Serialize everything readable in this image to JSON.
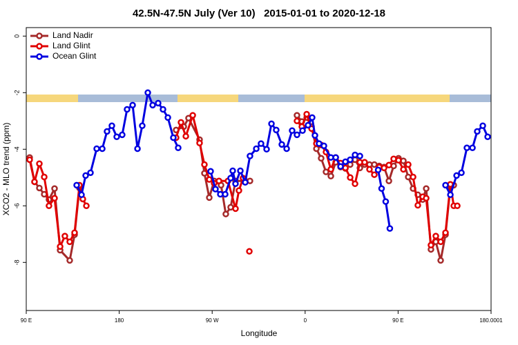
{
  "chart_data": {
    "type": "line",
    "title": "42.5N-47.5N July (Ver 10)   2015-01-01 to 2020-12-18",
    "x_label": "Longitude",
    "y_label": "XCO2 - MLO trend (ppm)",
    "xlim": [
      90,
      540
    ],
    "ylim": [
      -9.7,
      0.3
    ],
    "xticks": [
      {
        "value": 90,
        "label": "90 E"
      },
      180,
      {
        "value": 270,
        "label": "90 W"
      },
      {
        "value": 360,
        "label": "0"
      },
      {
        "value": 450,
        "label": "90 E"
      },
      180.0001
    ],
    "yticks": [
      0,
      -2,
      -4,
      -6,
      -8
    ],
    "legend": "top-left",
    "series": [
      {
        "name": "Land Nadir",
        "color": "#a52a2a",
        "x": [
          93.3,
          98,
          102.7,
          107.4,
          112,
          117.4,
          122.8,
          132.1,
          136.8,
          141.5,
          null,
          235.1,
          242.5,
          247.1,
          257.8,
          262.5,
          267.2,
          271.9,
          278.6,
          283.2,
          287.9,
          292.6,
          302,
          306.6,
          null,
          352.1,
          356.8,
          361.5,
          366.2,
          370.9,
          375.5,
          380.2,
          384.9,
          389.6,
          394.3,
          399,
          403.6,
          408.3,
          413,
          417.6,
          422.3,
          427,
          431.7,
          436.4,
          441.1,
          445.7,
          450.4,
          455.1,
          459.8,
          464.5,
          469.1,
          473.8,
          477.2,
          481.8,
          486.5,
          491.2,
          495.9,
          500.6,
          503.9
        ],
        "values": [
          -4.29,
          -5.15,
          -5.37,
          -5.59,
          -5.78,
          -5.39,
          -7.57,
          -7.93,
          -7.02,
          -5.37,
          null,
          -3.32,
          -3.2,
          -2.9,
          -3.66,
          -4.85,
          -5.71,
          -5.12,
          -5.27,
          -6.29,
          -6.05,
          -5.12,
          -5.12,
          -5.12,
          null,
          -2.8,
          -3.02,
          -2.88,
          -3.2,
          -3.98,
          -4.32,
          -4.8,
          -4.95,
          -4.46,
          -4.63,
          -4.68,
          -4.54,
          -4.37,
          -4.66,
          -4.54,
          -4.54,
          -4.54,
          -4.59,
          -4.63,
          -5.12,
          -4.59,
          -4.32,
          -4.41,
          -4.98,
          -5.39,
          -5.61,
          -5.78,
          -5.39,
          -7.54,
          -7.27,
          -7.93,
          -7.02,
          -5.32,
          -5.27
        ]
      },
      {
        "name": "Land Glint",
        "color": "#e00000",
        "x": [
          93.3,
          98,
          102.7,
          107.4,
          112,
          117.4,
          122.8,
          127.4,
          132.1,
          136.8,
          141.5,
          144.8,
          148.2,
          null,
          235.1,
          239.8,
          244.5,
          251.2,
          257.8,
          262.5,
          267.2,
          271.9,
          276.6,
          285.3,
          292.6,
          295.9,
          299.9,
          null,
          306,
          null,
          352.1,
          356.8,
          361.5,
          366.2,
          370.9,
          375.5,
          380.2,
          384.9,
          389.6,
          394.3,
          399,
          403.6,
          408.3,
          413,
          417.6,
          422.3,
          427,
          431.7,
          436.4,
          441.1,
          445.7,
          450.4,
          455.1,
          459.8,
          464.5,
          469.1,
          473.8,
          477.2,
          481.8,
          486.5,
          491.2,
          495.9,
          500.6,
          503.9,
          507.3
        ],
        "values": [
          -4.37,
          -5.15,
          -4.51,
          -4.98,
          -6,
          -5.73,
          -7.44,
          -7.07,
          -7.27,
          -6.95,
          -5.27,
          -5.76,
          -6,
          null,
          -3.59,
          -3.05,
          -3.54,
          -2.8,
          -3.78,
          -4.54,
          -5.07,
          -5.2,
          -5.12,
          -5.12,
          -6.1,
          -5.46,
          -5.02,
          null,
          -7.61,
          null,
          -3,
          -3.2,
          -2.76,
          -3.27,
          -3.8,
          -3.85,
          -4.1,
          -4.71,
          -4.29,
          -4.49,
          -4.66,
          -5,
          -5.22,
          -4.46,
          -4.46,
          -4.71,
          -4.9,
          -4.63,
          -4.66,
          -4.56,
          -4.34,
          -4.39,
          -4.71,
          -4.54,
          -4.98,
          -5.98,
          -5.68,
          -5.73,
          -7.39,
          -7.07,
          -7.27,
          -6.95,
          -5.24,
          -6,
          -6
        ]
      },
      {
        "name": "Ocean Glint",
        "color": "#0000e0",
        "x": [
          138.8,
          143.5,
          147.5,
          152.2,
          158.2,
          163.6,
          168.2,
          172.9,
          177.6,
          182.9,
          187.6,
          193,
          197.7,
          202.3,
          207.7,
          212.4,
          217.7,
          222.4,
          227.1,
          232.4,
          237.1,
          null,
          268.5,
          273.2,
          277.9,
          282.6,
          287.9,
          289.9,
          292.6,
          297.3,
          302,
          306.6,
          312.7,
          317.3,
          322.7,
          327.4,
          332,
          337.4,
          342.1,
          347.4,
          352.1,
          357.5,
          362.8,
          366.8,
          369.5,
          373.5,
          378.2,
          384.9,
          389.6,
          394.3,
          399,
          403.6,
          408.3,
          413,
          null,
          430.7,
          434,
          438,
          442,
          null,
          495.9,
          500.6,
          506.6,
          511.3,
          516.6,
          522,
          526.6,
          532,
          536.7
        ],
        "values": [
          -5.27,
          -5.61,
          -4.93,
          -4.83,
          -3.98,
          -3.98,
          -3.37,
          -3.17,
          -3.56,
          -3.49,
          -2.59,
          -2.44,
          -3.98,
          -3.17,
          -2,
          -2.44,
          -2.37,
          -2.59,
          -2.88,
          -3.59,
          -3.95,
          null,
          -4.78,
          -5.41,
          -5.59,
          -5.59,
          -5.02,
          -4.76,
          -5.22,
          -4.76,
          -5.17,
          -4.24,
          -3.98,
          -3.8,
          -4,
          -3.1,
          -3.32,
          -3.83,
          -3.98,
          -3.34,
          -3.49,
          -3.34,
          -3.15,
          -2.88,
          -3.51,
          -3.8,
          -3.88,
          -4.29,
          -4.29,
          -4.61,
          -4.44,
          -4.37,
          -4.2,
          -4.24,
          null,
          -4.73,
          -5.39,
          -5.85,
          -6.8,
          null,
          -5.27,
          -5.61,
          -4.93,
          -4.83,
          -3.95,
          -3.95,
          -3.37,
          -3.17,
          -3.56
        ]
      }
    ]
  }
}
